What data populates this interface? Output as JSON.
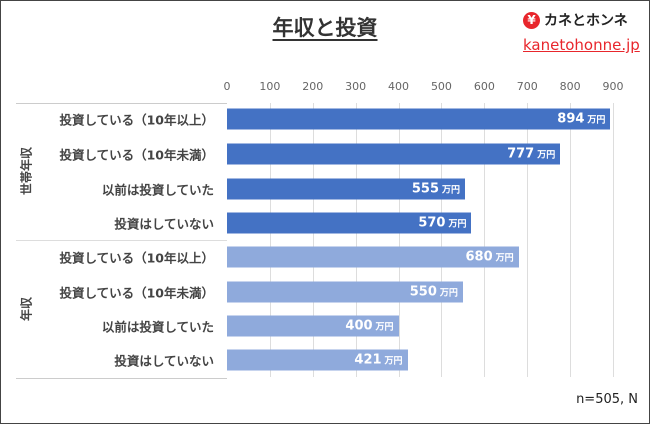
{
  "chart_data": {
    "type": "bar",
    "orientation": "horizontal",
    "title": "年収と投資",
    "unit": "万円",
    "xlim": [
      0,
      900
    ],
    "ticks": [
      0,
      100,
      200,
      300,
      400,
      500,
      600,
      700,
      800,
      900
    ],
    "groups": [
      {
        "name": "世帯年収",
        "color": "#4472C4",
        "categories": [
          "投資している（10年以上）",
          "投資している（10年未満）",
          "以前は投資していた",
          "投資はしていない"
        ],
        "values": [
          894,
          777,
          555,
          570
        ]
      },
      {
        "name": "年収",
        "color": "#8FAADC",
        "categories": [
          "投資している（10年以上）",
          "投資している（10年未満）",
          "以前は投資していた",
          "投資はしていない"
        ],
        "values": [
          680,
          550,
          400,
          421
        ]
      }
    ],
    "note": "n=505, N"
  },
  "brand": {
    "name": "カネとホンネ",
    "yen": "¥",
    "site": "kanetohonne.jp"
  }
}
